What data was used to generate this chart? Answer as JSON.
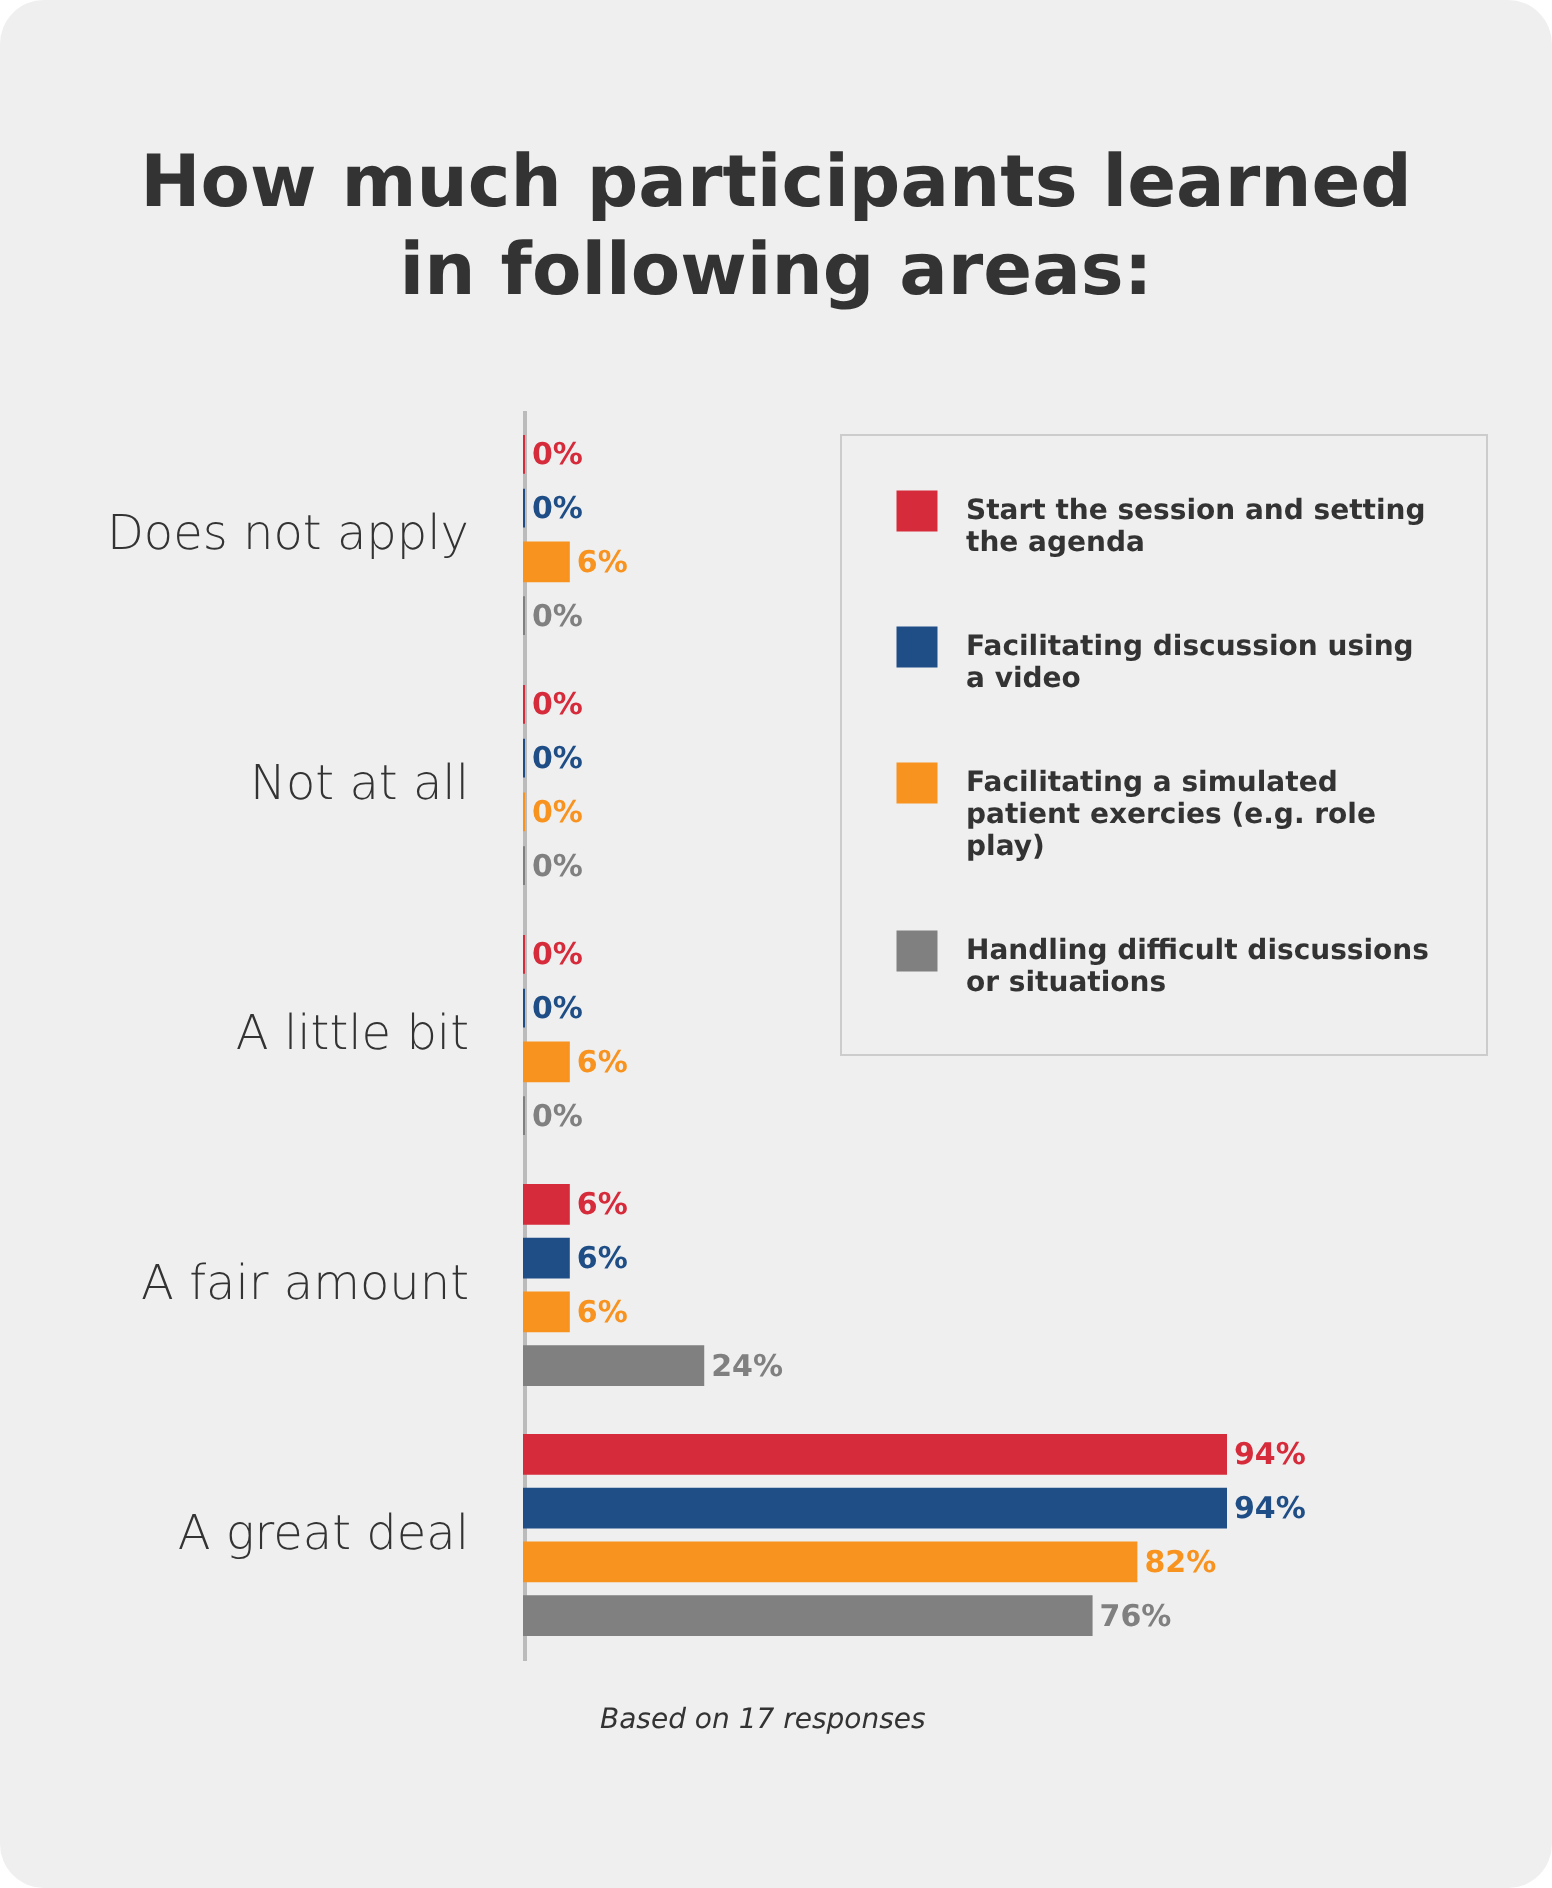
{
  "chart_data": {
    "type": "bar",
    "orientation": "horizontal",
    "title": "How much participants learned in following areas:",
    "categories": [
      "Does not apply",
      "Not at all",
      "A little bit",
      "A fair amount",
      "A great deal"
    ],
    "series": [
      {
        "name": "Start the session and setting the agenda",
        "color": "#d62b3a",
        "values": [
          0,
          0,
          0,
          6,
          94
        ],
        "value_labels": [
          "0%",
          "0%",
          "0%",
          "6%",
          "94%"
        ]
      },
      {
        "name": "Facilitating discussion using a video",
        "color": "#1f4e87",
        "values": [
          0,
          0,
          0,
          6,
          94
        ],
        "value_labels": [
          "0%",
          "0%",
          "0%",
          "6%",
          "94%"
        ]
      },
      {
        "name": "Facilitating a simulated patient exercies (e.g. role play)",
        "color": "#f7931e",
        "values": [
          6,
          0,
          6,
          6,
          82
        ],
        "value_labels": [
          "6%",
          "0%",
          "6%",
          "6%",
          "82%"
        ]
      },
      {
        "name": "Handling difficult discussions or situations",
        "color": "#808080",
        "values": [
          0,
          0,
          0,
          24,
          76
        ],
        "value_labels": [
          "0%",
          "0%",
          "0%",
          "24%",
          "76%"
        ]
      }
    ],
    "legend": "top right",
    "grid": false,
    "annotations": [
      "Based on 17 responses"
    ]
  }
}
